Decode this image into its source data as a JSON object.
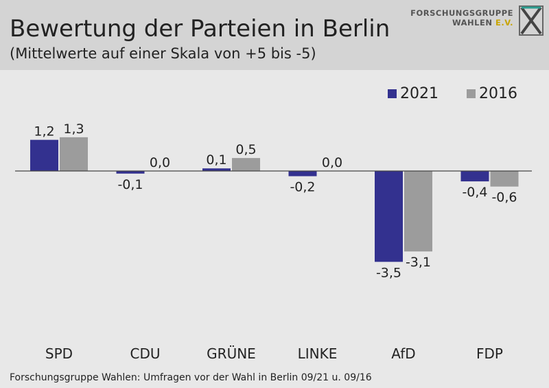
{
  "header": {
    "title": "Bewertung der Parteien in Berlin",
    "subtitle": "(Mittelwerte auf einer Skala von +5 bis -5)"
  },
  "logo": {
    "line1": "FORSCHUNGSGRUPPE",
    "line2": "WAHLEN",
    "line2_suffix": "E.V.",
    "icon": "fgw-logo-icon"
  },
  "footer": {
    "source": "Forschungsgruppe Wahlen: Umfragen vor der Wahl in Berlin 09/21 u. 09/16"
  },
  "chart_data": {
    "type": "bar",
    "title": "Bewertung der Parteien in Berlin",
    "subtitle": "(Mittelwerte auf einer Skala von +5 bis -5)",
    "categories": [
      "SPD",
      "CDU",
      "GRÜNE",
      "LINKE",
      "AfD",
      "FDP"
    ],
    "series": [
      {
        "name": "2021",
        "color": "#33318f",
        "values": [
          1.2,
          -0.1,
          0.1,
          -0.2,
          -3.5,
          -0.4
        ],
        "labels": [
          "1,2",
          "-0,1",
          "0,1",
          "-0,2",
          "-3,5",
          "-0,4"
        ]
      },
      {
        "name": "2016",
        "color": "#9c9c9c",
        "values": [
          1.3,
          0.0,
          0.5,
          0.0,
          -3.1,
          -0.6
        ],
        "labels": [
          "1,3",
          "0,0",
          "0,5",
          "0,0",
          "-3,1",
          "-0,6"
        ]
      }
    ],
    "ylim": [
      -5,
      5
    ],
    "grid": false,
    "legend": "top-right"
  }
}
